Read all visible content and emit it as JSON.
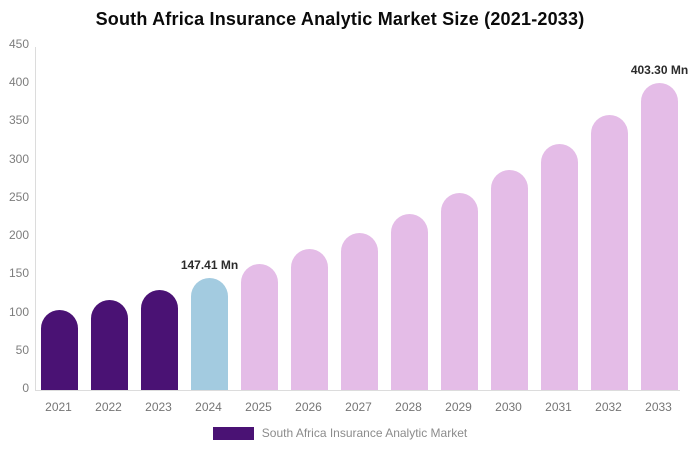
{
  "title": "South Africa Insurance Analytic Market Size (2021-2033)",
  "legend": {
    "label": "South Africa Insurance Analytic Market",
    "swatch_color": "#4a1274"
  },
  "colors": {
    "historical": "#4a1274",
    "base_year": "#a3cbe0",
    "forecast": "#e4bce7",
    "axis_line": "#dcdcdc",
    "tick_text": "#7d7d7d",
    "annotation_text": "#2b2b2b"
  },
  "chart_data": {
    "type": "bar",
    "title": "South Africa Insurance Analytic Market Size (2021-2033)",
    "unit": "Mn",
    "categories": [
      "2021",
      "2022",
      "2023",
      "2024",
      "2025",
      "2026",
      "2027",
      "2028",
      "2029",
      "2030",
      "2031",
      "2032",
      "2033"
    ],
    "values": [
      105.4,
      117.9,
      131.8,
      147.41,
      164.9,
      184.4,
      206.2,
      230.6,
      257.9,
      288.4,
      322.6,
      360.7,
      403.3
    ],
    "bar_color_keys": [
      "historical",
      "historical",
      "historical",
      "base_year",
      "forecast",
      "forecast",
      "forecast",
      "forecast",
      "forecast",
      "forecast",
      "forecast",
      "forecast",
      "forecast"
    ],
    "ylim": [
      0,
      450
    ],
    "y_ticks": [
      0,
      50,
      100,
      150,
      200,
      250,
      300,
      350,
      400,
      450
    ],
    "grid": false,
    "legend_position": "bottom",
    "annotations": [
      {
        "category": "2024",
        "text": "147.41 Mn"
      },
      {
        "category": "2033",
        "text": "403.30 Mn"
      }
    ]
  }
}
